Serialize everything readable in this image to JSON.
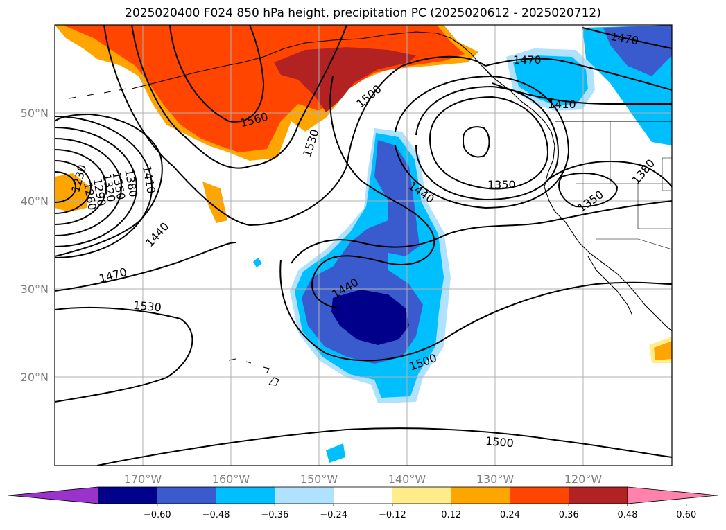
{
  "title": "2025020400 F024 850 hPa height, precipitation PC (2025020612 - 2025020712)",
  "lat_labels": [
    "50°N",
    "40°N",
    "30°N",
    "20°N"
  ],
  "lon_labels": [
    "170°W",
    "160°W",
    "150°W",
    "140°W",
    "130°W",
    "120°W"
  ],
  "contour_labels": {
    "c1560": "1560",
    "c1530a": "1530",
    "c1500a": "1500",
    "c1470a": "1470",
    "c1470b": "1470",
    "c1410a": "1410",
    "c1350a": "1350",
    "c1440a": "1440",
    "c1350b": "1350",
    "c1380a": "1380",
    "c1410b": "1410",
    "c1380b": "1380",
    "c1350c": "1350",
    "c1320": "1320",
    "c1290": "1290",
    "c1260": "1260",
    "c1230": "1230",
    "c1440b": "1440",
    "c1470c": "1470",
    "c1530b": "1530",
    "c1440c": "1440",
    "c1500b": "1500",
    "c1500c": "1500"
  },
  "colorbar": {
    "ticks": [
      "−0.60",
      "−0.48",
      "−0.36",
      "−0.24",
      "−0.12",
      "0.12",
      "0.24",
      "0.36",
      "0.48",
      "0.60"
    ],
    "colors": [
      "#9933cc",
      "#00008b",
      "#3a5bcd",
      "#00bfff",
      "#b0e2ff",
      "#ffffff",
      "#ffec8b",
      "#ffa500",
      "#ff4500",
      "#b22222",
      "#ff82ab"
    ]
  },
  "colors": {
    "land_outline": "#000000",
    "grid": "#b0b0b0",
    "contour": "#000000"
  }
}
